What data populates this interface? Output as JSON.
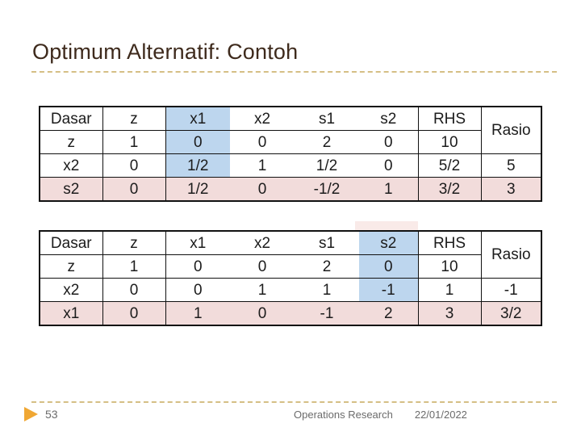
{
  "title": "Optimum Alternatif: Contoh",
  "colors": {
    "title_text": "#3e2a1c",
    "dashed_rule": "#d5bf85",
    "pivot_column_blue": "#bdd6ee",
    "pivot_row_pink": "#f2dcdb",
    "footer_text_gray": "#6b6b6b",
    "page_arrow_amber": "#f0a733",
    "table_border": "#111111"
  },
  "tables": [
    {
      "name": "simplex-tableau-1",
      "headers": [
        "Dasar",
        "z",
        "x1",
        "x2",
        "s1",
        "s2",
        "RHS",
        "Rasio"
      ],
      "pivot_column": "x1",
      "pivot_row": "s2",
      "rows": [
        {
          "cells": [
            "z",
            "1",
            "0",
            "0",
            "2",
            "0",
            "10"
          ]
        },
        {
          "cells": [
            "x2",
            "0",
            "1/2",
            "1",
            "1/2",
            "0",
            "5/2",
            "5"
          ]
        },
        {
          "cells": [
            "s2",
            "0",
            "1/2",
            "0",
            "-1/2",
            "1",
            "3/2",
            "3"
          ]
        }
      ]
    },
    {
      "name": "simplex-tableau-2",
      "headers": [
        "Dasar",
        "z",
        "x1",
        "x2",
        "s1",
        "s2",
        "RHS",
        "Rasio"
      ],
      "pivot_column": "s2",
      "pivot_row": "x1",
      "rows": [
        {
          "cells": [
            "z",
            "1",
            "0",
            "0",
            "2",
            "0",
            "10"
          ]
        },
        {
          "cells": [
            "x2",
            "0",
            "0",
            "1",
            "1",
            "-1",
            "1",
            "-1"
          ]
        },
        {
          "cells": [
            "x1",
            "0",
            "1",
            "0",
            "-1",
            "2",
            "3",
            "3/2"
          ]
        }
      ]
    }
  ],
  "footer": {
    "page_number": "53",
    "course_label": "Operations Research",
    "date": "22/01/2022"
  }
}
